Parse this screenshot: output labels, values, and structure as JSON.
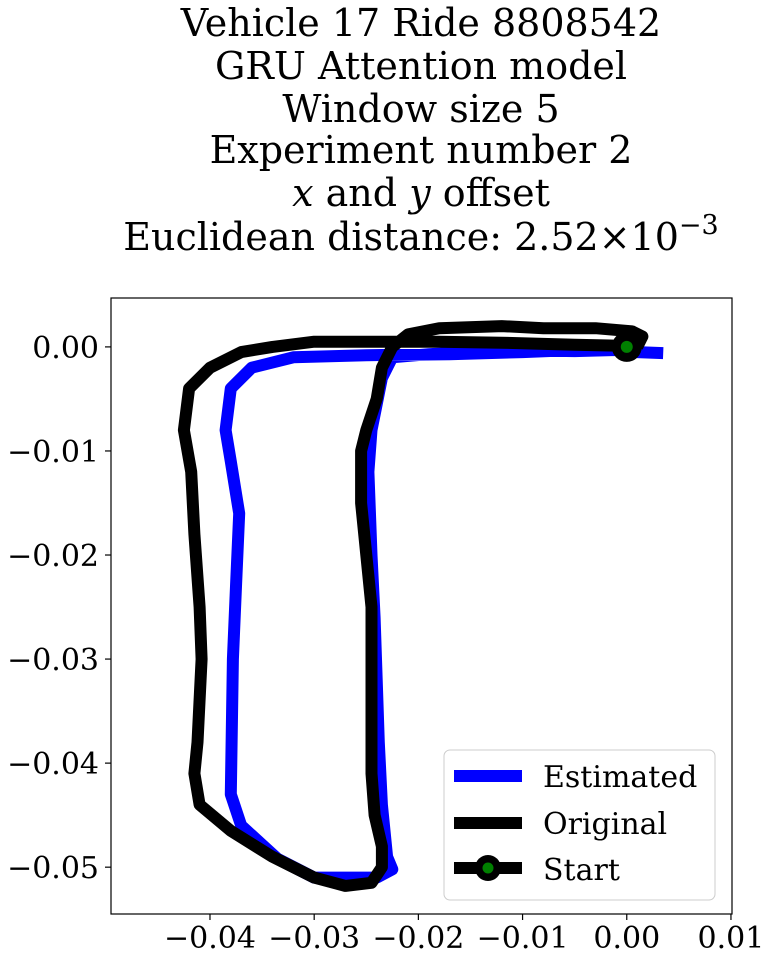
{
  "chart_data": {
    "type": "line",
    "title_lines": [
      "Vehicle 17 Ride 8808542",
      "GRU Attention model",
      "Window size 5",
      "Experiment number 2"
    ],
    "offset_line": {
      "x_sym": "x",
      "mid": " and ",
      "y_sym": "y",
      "tail": " offset"
    },
    "distance_line": {
      "prefix": "Euclidean distance: ",
      "mantissa": "2.52",
      "times": "×10",
      "exponent": "−3"
    },
    "xlim": [
      -0.0495,
      0.0101
    ],
    "ylim": [
      -0.0545,
      0.0047
    ],
    "x_ticks": [
      {
        "value": -0.04,
        "label": "−0.04"
      },
      {
        "value": -0.03,
        "label": "−0.03"
      },
      {
        "value": -0.02,
        "label": "−0.02"
      },
      {
        "value": -0.01,
        "label": "−0.01"
      },
      {
        "value": 0.0,
        "label": "0.00"
      },
      {
        "value": 0.01,
        "label": "0.01"
      }
    ],
    "y_ticks": [
      {
        "value": 0.0,
        "label": "0.00"
      },
      {
        "value": -0.01,
        "label": "−0.01"
      },
      {
        "value": -0.02,
        "label": "−0.02"
      },
      {
        "value": -0.03,
        "label": "−0.03"
      },
      {
        "value": -0.04,
        "label": "−0.04"
      },
      {
        "value": -0.05,
        "label": "−0.05"
      }
    ],
    "series": [
      {
        "name": "Estimated",
        "color": "#0000ff",
        "points": [
          [
            0.0035,
            -0.0006
          ],
          [
            0.001,
            -0.0005
          ],
          [
            -0.001,
            -0.0003
          ],
          [
            -0.005,
            -0.0004
          ],
          [
            -0.012,
            -0.0003
          ],
          [
            -0.019,
            -0.0007
          ],
          [
            -0.0225,
            -0.001
          ],
          [
            -0.0235,
            -0.003
          ],
          [
            -0.0245,
            -0.008
          ],
          [
            -0.0248,
            -0.012
          ],
          [
            -0.0245,
            -0.02
          ],
          [
            -0.0242,
            -0.026
          ],
          [
            -0.024,
            -0.032
          ],
          [
            -0.0238,
            -0.038
          ],
          [
            -0.0235,
            -0.044
          ],
          [
            -0.023,
            -0.049
          ],
          [
            -0.0225,
            -0.0502
          ],
          [
            -0.024,
            -0.051
          ],
          [
            -0.03,
            -0.051
          ],
          [
            -0.0335,
            -0.0492
          ],
          [
            -0.037,
            -0.046
          ],
          [
            -0.038,
            -0.043
          ],
          [
            -0.0378,
            -0.03
          ],
          [
            -0.0375,
            -0.023
          ],
          [
            -0.0372,
            -0.016
          ],
          [
            -0.038,
            -0.011
          ],
          [
            -0.0385,
            -0.008
          ],
          [
            -0.038,
            -0.004
          ],
          [
            -0.036,
            -0.002
          ],
          [
            -0.032,
            -0.001
          ],
          [
            -0.025,
            -0.0008
          ],
          [
            -0.017,
            -0.0007
          ],
          [
            -0.01,
            -0.0005
          ],
          [
            -0.005,
            -0.0003
          ]
        ]
      },
      {
        "name": "Original",
        "color": "#000000",
        "points": [
          [
            0.001,
            0.0
          ],
          [
            0.0015,
            0.001
          ],
          [
            0.0005,
            0.0015
          ],
          [
            -0.003,
            0.0018
          ],
          [
            -0.008,
            0.0018
          ],
          [
            -0.012,
            0.002
          ],
          [
            -0.018,
            0.0018
          ],
          [
            -0.021,
            0.0012
          ],
          [
            -0.0225,
            0.0
          ],
          [
            -0.0235,
            -0.002
          ],
          [
            -0.024,
            -0.005
          ],
          [
            -0.025,
            -0.008
          ],
          [
            -0.0255,
            -0.01
          ],
          [
            -0.0255,
            -0.015
          ],
          [
            -0.025,
            -0.02
          ],
          [
            -0.0245,
            -0.025
          ],
          [
            -0.0245,
            -0.03
          ],
          [
            -0.0245,
            -0.036
          ],
          [
            -0.0245,
            -0.041
          ],
          [
            -0.0242,
            -0.045
          ],
          [
            -0.0235,
            -0.048
          ],
          [
            -0.0235,
            -0.05
          ],
          [
            -0.0245,
            -0.0515
          ],
          [
            -0.027,
            -0.0518
          ],
          [
            -0.03,
            -0.051
          ],
          [
            -0.034,
            -0.049
          ],
          [
            -0.038,
            -0.0465
          ],
          [
            -0.041,
            -0.044
          ],
          [
            -0.0415,
            -0.041
          ],
          [
            -0.0412,
            -0.038
          ],
          [
            -0.0408,
            -0.03
          ],
          [
            -0.041,
            -0.025
          ],
          [
            -0.0415,
            -0.018
          ],
          [
            -0.0418,
            -0.012
          ],
          [
            -0.0425,
            -0.008
          ],
          [
            -0.042,
            -0.004
          ],
          [
            -0.04,
            -0.002
          ],
          [
            -0.037,
            -0.0005
          ],
          [
            -0.034,
            0.0
          ],
          [
            -0.03,
            0.0005
          ],
          [
            -0.025,
            0.0005
          ],
          [
            -0.018,
            0.0005
          ],
          [
            -0.012,
            0.0004
          ],
          [
            -0.005,
            0.0002
          ],
          [
            0.0,
            0.0001
          ]
        ]
      }
    ],
    "start_point": {
      "name": "Start",
      "x": 0.0,
      "y": 0.0,
      "ring_color": "#000000",
      "fill_color": "#008000"
    },
    "legend": {
      "position": "lower right",
      "entries": [
        "Estimated",
        "Original",
        "Start"
      ]
    },
    "grid": false
  }
}
